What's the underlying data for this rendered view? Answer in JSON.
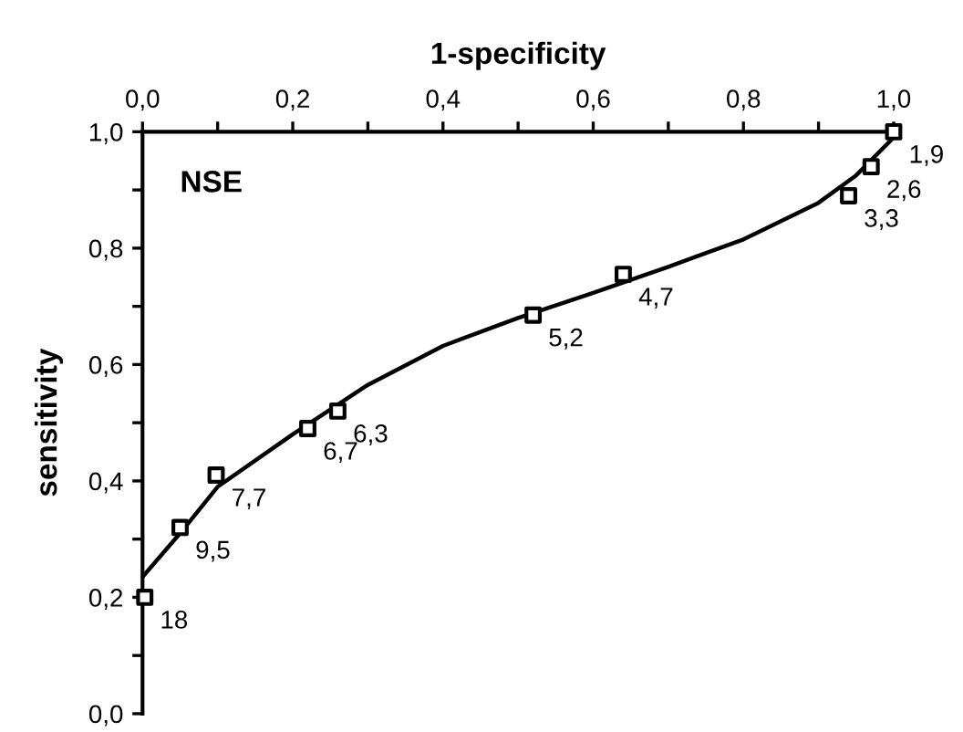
{
  "chart_data": {
    "type": "scatter",
    "xlabel": "1-specificity",
    "ylabel": "sensitivity",
    "xlim": [
      0,
      1
    ],
    "ylim": [
      0,
      1
    ],
    "xticks": [
      {
        "value": 0,
        "label": "0,0"
      },
      {
        "value": 0.1,
        "label": null
      },
      {
        "value": 0.2,
        "label": "0,2"
      },
      {
        "value": 0.3,
        "label": null
      },
      {
        "value": 0.4,
        "label": "0,4"
      },
      {
        "value": 0.5,
        "label": null
      },
      {
        "value": 0.6,
        "label": "0,6"
      },
      {
        "value": 0.7,
        "label": null
      },
      {
        "value": 0.8,
        "label": "0,8"
      },
      {
        "value": 0.9,
        "label": null
      },
      {
        "value": 1,
        "label": "1,0"
      }
    ],
    "yticks": [
      {
        "value": 0,
        "label": "0,0"
      },
      {
        "value": 0.1,
        "label": null
      },
      {
        "value": 0.2,
        "label": "0,2"
      },
      {
        "value": 0.3,
        "label": null
      },
      {
        "value": 0.4,
        "label": "0,4"
      },
      {
        "value": 0.5,
        "label": null
      },
      {
        "value": 0.6,
        "label": "0,6"
      },
      {
        "value": 0.7,
        "label": null
      },
      {
        "value": 0.8,
        "label": "0,8"
      },
      {
        "value": 0.9,
        "label": null
      },
      {
        "value": 1,
        "label": "1,0"
      }
    ],
    "grid": false,
    "legend": false,
    "series": [
      {
        "marker": "square",
        "color": "#000000",
        "x": [
          0.003,
          0.05,
          0.098,
          0.22,
          0.26,
          0.52,
          0.64,
          0.94,
          0.97,
          1.0
        ],
        "values": [
          0.2,
          0.32,
          0.41,
          0.49,
          0.52,
          0.685,
          0.755,
          0.89,
          0.94,
          1.0
        ]
      },
      {
        "type": "line",
        "marker": "none",
        "line_style": "solid",
        "color": "#000000",
        "x": [
          0,
          0.05,
          0.1,
          0.2,
          0.3,
          0.4,
          0.5,
          0.6,
          0.7,
          0.8,
          0.9,
          0.95,
          1.0
        ],
        "values": [
          0.235,
          0.31,
          0.39,
          0.48,
          0.565,
          0.632,
          0.68,
          0.723,
          0.768,
          0.815,
          0.878,
          0.925,
          0.99
        ]
      }
    ],
    "annotations": [
      "NSE",
      {
        "text": "18",
        "x": 0.003,
        "y": 0.2
      },
      {
        "text": "9,5",
        "x": 0.05,
        "y": 0.32
      },
      {
        "text": "7,7",
        "x": 0.098,
        "y": 0.41
      },
      {
        "text": "6,7",
        "x": 0.22,
        "y": 0.49
      },
      {
        "text": "6,3",
        "x": 0.26,
        "y": 0.52
      },
      {
        "text": "5,2",
        "x": 0.52,
        "y": 0.685
      },
      {
        "text": "4,7",
        "x": 0.64,
        "y": 0.755
      },
      {
        "text": "3,3",
        "x": 0.94,
        "y": 0.89
      },
      {
        "text": "2,6",
        "x": 0.97,
        "y": 0.94
      },
      {
        "text": "1,9",
        "x": 1.0,
        "y": 1.0
      }
    ]
  }
}
